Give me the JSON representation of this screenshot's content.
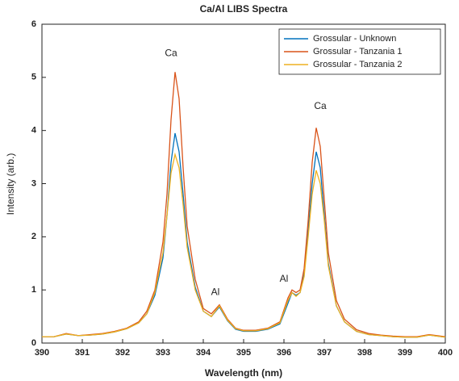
{
  "chart_data": {
    "type": "line",
    "title": "Ca/Al LIBS Spectra",
    "xlabel": "Wavelength (nm)",
    "ylabel": "Intensity (arb.)",
    "x": [
      390,
      390.3,
      390.6,
      390.9,
      391.2,
      391.5,
      391.8,
      392.1,
      392.4,
      392.6,
      392.8,
      393.0,
      393.1,
      393.2,
      393.3,
      393.4,
      393.5,
      393.6,
      393.8,
      394.0,
      394.2,
      394.4,
      394.6,
      394.8,
      395.0,
      395.3,
      395.6,
      395.9,
      396.1,
      396.2,
      396.3,
      396.4,
      396.5,
      396.6,
      396.7,
      396.8,
      396.9,
      397.0,
      397.1,
      397.3,
      397.5,
      397.8,
      398.1,
      398.4,
      398.7,
      399.0,
      399.3,
      399.6,
      400
    ],
    "series": [
      {
        "name": "Grossular - Unknown",
        "color": "#0072bd",
        "values": [
          0.12,
          0.12,
          0.17,
          0.14,
          0.15,
          0.17,
          0.21,
          0.27,
          0.38,
          0.55,
          0.9,
          1.6,
          2.4,
          3.4,
          3.95,
          3.6,
          2.8,
          1.9,
          1.05,
          0.6,
          0.5,
          0.68,
          0.42,
          0.26,
          0.22,
          0.22,
          0.26,
          0.36,
          0.75,
          0.95,
          0.9,
          0.95,
          1.3,
          2.1,
          3.0,
          3.6,
          3.3,
          2.4,
          1.5,
          0.7,
          0.4,
          0.22,
          0.16,
          0.14,
          0.12,
          0.11,
          0.11,
          0.15,
          0.11
        ]
      },
      {
        "name": "Grossular - Tanzania 1",
        "color": "#d95319",
        "values": [
          0.12,
          0.12,
          0.18,
          0.14,
          0.16,
          0.18,
          0.22,
          0.28,
          0.4,
          0.6,
          1.0,
          1.9,
          2.8,
          4.2,
          5.1,
          4.6,
          3.3,
          2.2,
          1.2,
          0.65,
          0.55,
          0.72,
          0.45,
          0.28,
          0.24,
          0.24,
          0.28,
          0.4,
          0.85,
          1.0,
          0.95,
          1.0,
          1.4,
          2.3,
          3.4,
          4.05,
          3.7,
          2.7,
          1.7,
          0.8,
          0.45,
          0.25,
          0.18,
          0.15,
          0.13,
          0.12,
          0.12,
          0.16,
          0.12
        ]
      },
      {
        "name": "Grossular - Tanzania 2",
        "color": "#edb120",
        "values": [
          0.12,
          0.12,
          0.17,
          0.14,
          0.15,
          0.17,
          0.21,
          0.27,
          0.38,
          0.55,
          0.95,
          1.7,
          2.4,
          3.2,
          3.55,
          3.3,
          2.6,
          1.8,
          1.0,
          0.6,
          0.5,
          0.7,
          0.43,
          0.27,
          0.23,
          0.23,
          0.27,
          0.38,
          0.8,
          0.95,
          0.88,
          0.95,
          1.25,
          2.0,
          2.8,
          3.25,
          3.0,
          2.3,
          1.45,
          0.7,
          0.4,
          0.22,
          0.16,
          0.14,
          0.12,
          0.11,
          0.11,
          0.15,
          0.11
        ]
      }
    ],
    "annotations": [
      {
        "text": "Ca",
        "x": 393.2,
        "y": 5.45
      },
      {
        "text": "Al",
        "x": 394.3,
        "y": 0.95
      },
      {
        "text": "Al",
        "x": 396.0,
        "y": 1.2
      },
      {
        "text": "Ca",
        "x": 396.9,
        "y": 4.45
      }
    ],
    "xlim": [
      390,
      400
    ],
    "xticks": [
      390,
      391,
      392,
      393,
      394,
      395,
      396,
      397,
      398,
      399,
      400
    ],
    "ylim": [
      0,
      6
    ],
    "yticks": [
      0,
      1,
      2,
      3,
      4,
      5,
      6
    ],
    "legend": "upper right"
  }
}
